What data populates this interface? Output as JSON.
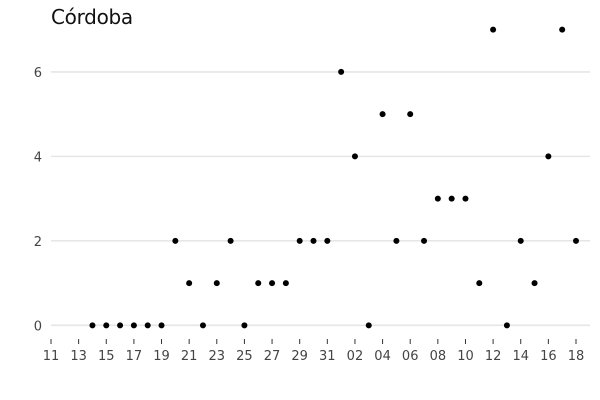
{
  "chart_data": {
    "type": "scatter",
    "title": "Córdoba",
    "xlabel": "",
    "ylabel": "",
    "grid": "horizontal",
    "legend": "none",
    "point_color": "#000000",
    "ylim": [
      -0.3,
      7.3
    ],
    "yticks": [
      0,
      2,
      4,
      6
    ],
    "x": [
      "11",
      "12",
      "13",
      "14",
      "15",
      "16",
      "17",
      "18",
      "19",
      "20",
      "21",
      "22",
      "23",
      "24",
      "25",
      "26",
      "27",
      "28",
      "29",
      "30",
      "31",
      "01",
      "02",
      "03",
      "04",
      "05",
      "06",
      "07",
      "08",
      "09",
      "10",
      "11",
      "12",
      "13",
      "14",
      "15",
      "16",
      "17",
      "18"
    ],
    "xticks": [
      "11",
      "13",
      "15",
      "17",
      "19",
      "21",
      "23",
      "25",
      "27",
      "29",
      "31",
      "02",
      "04",
      "06",
      "08",
      "10",
      "12",
      "14",
      "16",
      "18"
    ],
    "points": [
      {
        "x": "14",
        "y": 0
      },
      {
        "x": "15",
        "y": 0
      },
      {
        "x": "16",
        "y": 0
      },
      {
        "x": "17",
        "y": 0
      },
      {
        "x": "18",
        "y": 0
      },
      {
        "x": "19",
        "y": 0
      },
      {
        "x": "20",
        "y": 2
      },
      {
        "x": "21",
        "y": 1
      },
      {
        "x": "22",
        "y": 0
      },
      {
        "x": "23",
        "y": 1
      },
      {
        "x": "24",
        "y": 2
      },
      {
        "x": "25",
        "y": 0
      },
      {
        "x": "26",
        "y": 1
      },
      {
        "x": "27",
        "y": 1
      },
      {
        "x": "28",
        "y": 1
      },
      {
        "x": "29",
        "y": 2
      },
      {
        "x": "30",
        "y": 2
      },
      {
        "x": "31",
        "y": 2
      },
      {
        "x": "01",
        "y": 6
      },
      {
        "x": "02",
        "y": 4
      },
      {
        "x": "03",
        "y": 0
      },
      {
        "x": "04",
        "y": 5
      },
      {
        "x": "05",
        "y": 2
      },
      {
        "x": "06",
        "y": 5
      },
      {
        "x": "07",
        "y": 2
      },
      {
        "x": "08",
        "y": 3
      },
      {
        "x": "09",
        "y": 3
      },
      {
        "x": "10",
        "y": 3
      },
      {
        "x": "11",
        "y": 1
      },
      {
        "x": "12",
        "y": 7
      },
      {
        "x": "13",
        "y": 0
      },
      {
        "x": "14",
        "y": 2
      },
      {
        "x": "15",
        "y": 1
      },
      {
        "x": "16",
        "y": 4
      },
      {
        "x": "17",
        "y": 7
      },
      {
        "x": "18",
        "y": 2
      }
    ]
  }
}
